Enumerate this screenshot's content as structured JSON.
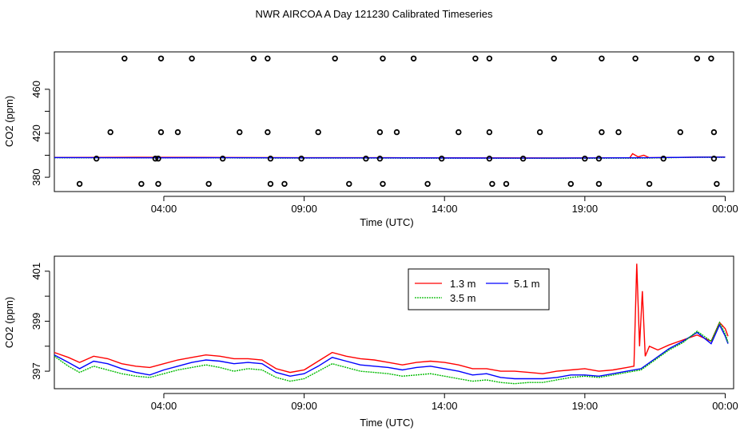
{
  "figure": {
    "title": "NWR AIRCOA A  Day 121230  Calibrated Timeseries"
  },
  "colors": {
    "s1": "#ff0000",
    "s2": "#00bb00",
    "s3": "#0000ff",
    "frame": "#000000"
  },
  "chart_data": [
    {
      "type": "scatter",
      "xlabel": "Time (UTC)",
      "ylabel": "CO2 (ppm)",
      "x_ticks": [
        "04:00",
        "09:00",
        "14:00",
        "19:00",
        "00:00"
      ],
      "x_tick_hours": [
        4,
        9,
        14,
        19,
        24
      ],
      "y_ticks": [
        "380",
        "420",
        "460"
      ],
      "y_tick_values": [
        380,
        420,
        460
      ],
      "xlim": [
        0.1,
        24.3
      ],
      "ylim": [
        367,
        494
      ],
      "grid": false,
      "markers": [
        [
          1.0,
          374
        ],
        [
          1.6,
          397
        ],
        [
          2.1,
          421
        ],
        [
          2.6,
          488
        ],
        [
          3.2,
          374
        ],
        [
          3.7,
          397
        ],
        [
          3.8,
          374
        ],
        [
          3.8,
          397
        ],
        [
          3.9,
          421
        ],
        [
          3.9,
          488
        ],
        [
          4.5,
          421
        ],
        [
          5.0,
          488
        ],
        [
          5.6,
          374
        ],
        [
          6.1,
          397
        ],
        [
          6.7,
          421
        ],
        [
          7.2,
          488
        ],
        [
          7.7,
          488
        ],
        [
          7.7,
          421
        ],
        [
          7.8,
          397
        ],
        [
          7.8,
          374
        ],
        [
          8.3,
          374
        ],
        [
          8.9,
          397
        ],
        [
          9.5,
          421
        ],
        [
          10.1,
          488
        ],
        [
          10.6,
          374
        ],
        [
          11.2,
          397
        ],
        [
          11.7,
          421
        ],
        [
          11.7,
          397
        ],
        [
          11.8,
          488
        ],
        [
          11.8,
          374
        ],
        [
          12.3,
          421
        ],
        [
          12.9,
          488
        ],
        [
          13.4,
          374
        ],
        [
          13.9,
          397
        ],
        [
          14.5,
          421
        ],
        [
          15.1,
          488
        ],
        [
          15.6,
          488
        ],
        [
          15.6,
          421
        ],
        [
          15.6,
          397
        ],
        [
          15.7,
          374
        ],
        [
          16.2,
          374
        ],
        [
          16.8,
          397
        ],
        [
          17.4,
          421
        ],
        [
          17.9,
          488
        ],
        [
          18.5,
          374
        ],
        [
          19.0,
          397
        ],
        [
          19.5,
          397
        ],
        [
          19.5,
          374
        ],
        [
          19.6,
          421
        ],
        [
          19.6,
          488
        ],
        [
          20.2,
          421
        ],
        [
          20.8,
          488
        ],
        [
          21.3,
          374
        ],
        [
          21.8,
          397
        ],
        [
          22.4,
          421
        ],
        [
          23.0,
          488
        ],
        [
          23.5,
          488
        ],
        [
          23.6,
          421
        ],
        [
          23.6,
          397
        ],
        [
          23.7,
          374
        ]
      ],
      "series": [
        {
          "key": "s1",
          "points": [
            [
              0.1,
              398.0
            ],
            [
              3.0,
              398.1
            ],
            [
              6.0,
              398.0
            ],
            [
              9.0,
              397.8
            ],
            [
              12.0,
              397.8
            ],
            [
              15.0,
              397.6
            ],
            [
              18.0,
              397.5
            ],
            [
              20.6,
              397.6
            ],
            [
              20.7,
              401.5
            ],
            [
              20.9,
              398.5
            ],
            [
              21.1,
              400.0
            ],
            [
              21.3,
              397.8
            ],
            [
              23.0,
              398.3
            ],
            [
              24.0,
              398.4
            ]
          ]
        },
        {
          "key": "s2",
          "points": [
            [
              0.1,
              397.8
            ],
            [
              3.0,
              397.6
            ],
            [
              6.0,
              397.6
            ],
            [
              9.0,
              397.4
            ],
            [
              12.0,
              397.4
            ],
            [
              15.0,
              397.3
            ],
            [
              18.0,
              397.2
            ],
            [
              21.0,
              397.4
            ],
            [
              23.0,
              398.2
            ],
            [
              24.0,
              398.2
            ]
          ]
        },
        {
          "key": "s3",
          "points": [
            [
              0.1,
              397.9
            ],
            [
              3.0,
              397.7
            ],
            [
              6.0,
              397.8
            ],
            [
              9.0,
              397.6
            ],
            [
              12.0,
              397.6
            ],
            [
              15.0,
              397.5
            ],
            [
              18.0,
              397.4
            ],
            [
              21.0,
              397.7
            ],
            [
              23.0,
              398.3
            ],
            [
              24.0,
              398.3
            ]
          ]
        }
      ]
    },
    {
      "type": "line",
      "xlabel": "Time (UTC)",
      "ylabel": "CO2 (ppm)",
      "x_ticks": [
        "04:00",
        "09:00",
        "14:00",
        "19:00",
        "00:00"
      ],
      "x_tick_hours": [
        4,
        9,
        14,
        19,
        24
      ],
      "y_ticks": [
        "397",
        "399",
        "401"
      ],
      "y_tick_values": [
        397,
        399,
        401
      ],
      "xlim": [
        0.1,
        24.3
      ],
      "ylim": [
        396.3,
        401.6
      ],
      "grid": false,
      "legend": {
        "position": "top-center",
        "entries": [
          {
            "key": "s1",
            "label": "1.3 m"
          },
          {
            "key": "s3",
            "label": "5.1 m"
          },
          {
            "key": "s2",
            "label": "3.5 m"
          }
        ]
      },
      "series": [
        {
          "key": "s1",
          "points": [
            [
              0.1,
              397.75
            ],
            [
              0.6,
              397.55
            ],
            [
              1.0,
              397.35
            ],
            [
              1.5,
              397.6
            ],
            [
              2.0,
              397.5
            ],
            [
              2.5,
              397.3
            ],
            [
              3.0,
              397.2
            ],
            [
              3.5,
              397.15
            ],
            [
              4.0,
              397.3
            ],
            [
              4.5,
              397.45
            ],
            [
              5.0,
              397.55
            ],
            [
              5.5,
              397.65
            ],
            [
              6.0,
              397.6
            ],
            [
              6.5,
              397.5
            ],
            [
              7.0,
              397.5
            ],
            [
              7.5,
              397.45
            ],
            [
              8.0,
              397.1
            ],
            [
              8.5,
              396.95
            ],
            [
              9.0,
              397.05
            ],
            [
              9.5,
              397.4
            ],
            [
              10.0,
              397.75
            ],
            [
              10.5,
              397.6
            ],
            [
              11.0,
              397.5
            ],
            [
              11.5,
              397.45
            ],
            [
              12.0,
              397.35
            ],
            [
              12.5,
              397.25
            ],
            [
              13.0,
              397.35
            ],
            [
              13.5,
              397.4
            ],
            [
              14.0,
              397.35
            ],
            [
              14.5,
              397.25
            ],
            [
              15.0,
              397.1
            ],
            [
              15.5,
              397.1
            ],
            [
              16.0,
              397.0
            ],
            [
              16.5,
              397.0
            ],
            [
              17.0,
              396.95
            ],
            [
              17.5,
              396.9
            ],
            [
              18.0,
              397.0
            ],
            [
              18.5,
              397.05
            ],
            [
              19.0,
              397.1
            ],
            [
              19.5,
              397.0
            ],
            [
              20.0,
              397.05
            ],
            [
              20.5,
              397.15
            ],
            [
              20.75,
              397.2
            ],
            [
              20.85,
              401.3
            ],
            [
              20.95,
              398.0
            ],
            [
              21.05,
              400.2
            ],
            [
              21.15,
              397.6
            ],
            [
              21.3,
              398.0
            ],
            [
              21.6,
              397.85
            ],
            [
              22.0,
              398.05
            ],
            [
              22.5,
              398.25
            ],
            [
              23.0,
              398.45
            ],
            [
              23.5,
              398.2
            ],
            [
              23.8,
              398.95
            ],
            [
              24.0,
              398.7
            ],
            [
              24.1,
              398.4
            ]
          ]
        },
        {
          "key": "s3",
          "points": [
            [
              0.1,
              397.65
            ],
            [
              0.6,
              397.35
            ],
            [
              1.0,
              397.1
            ],
            [
              1.5,
              397.4
            ],
            [
              2.0,
              397.3
            ],
            [
              2.5,
              397.1
            ],
            [
              3.0,
              396.95
            ],
            [
              3.5,
              396.85
            ],
            [
              4.0,
              397.05
            ],
            [
              4.5,
              397.2
            ],
            [
              5.0,
              397.35
            ],
            [
              5.5,
              397.45
            ],
            [
              6.0,
              397.4
            ],
            [
              6.5,
              397.3
            ],
            [
              7.0,
              397.35
            ],
            [
              7.5,
              397.3
            ],
            [
              8.0,
              396.95
            ],
            [
              8.5,
              396.8
            ],
            [
              9.0,
              396.9
            ],
            [
              9.5,
              397.2
            ],
            [
              10.0,
              397.55
            ],
            [
              10.5,
              397.4
            ],
            [
              11.0,
              397.25
            ],
            [
              11.5,
              397.2
            ],
            [
              12.0,
              397.15
            ],
            [
              12.5,
              397.05
            ],
            [
              13.0,
              397.15
            ],
            [
              13.5,
              397.2
            ],
            [
              14.0,
              397.1
            ],
            [
              14.5,
              397.0
            ],
            [
              15.0,
              396.85
            ],
            [
              15.5,
              396.9
            ],
            [
              16.0,
              396.75
            ],
            [
              16.5,
              396.7
            ],
            [
              17.0,
              396.7
            ],
            [
              17.5,
              396.7
            ],
            [
              18.0,
              396.75
            ],
            [
              18.5,
              396.85
            ],
            [
              19.0,
              396.85
            ],
            [
              19.5,
              396.8
            ],
            [
              20.0,
              396.9
            ],
            [
              20.5,
              397.0
            ],
            [
              21.0,
              397.1
            ],
            [
              21.5,
              397.5
            ],
            [
              22.0,
              397.9
            ],
            [
              22.5,
              398.2
            ],
            [
              23.0,
              398.55
            ],
            [
              23.5,
              398.1
            ],
            [
              23.8,
              398.85
            ],
            [
              24.0,
              398.4
            ],
            [
              24.1,
              398.1
            ]
          ]
        },
        {
          "key": "s2",
          "points": [
            [
              0.1,
              397.6
            ],
            [
              0.6,
              397.2
            ],
            [
              1.0,
              396.95
            ],
            [
              1.5,
              397.2
            ],
            [
              2.0,
              397.05
            ],
            [
              2.5,
              396.9
            ],
            [
              3.0,
              396.8
            ],
            [
              3.5,
              396.75
            ],
            [
              4.0,
              396.9
            ],
            [
              4.5,
              397.05
            ],
            [
              5.0,
              397.15
            ],
            [
              5.5,
              397.25
            ],
            [
              6.0,
              397.15
            ],
            [
              6.5,
              397.0
            ],
            [
              7.0,
              397.1
            ],
            [
              7.5,
              397.05
            ],
            [
              8.0,
              396.75
            ],
            [
              8.5,
              396.6
            ],
            [
              9.0,
              396.7
            ],
            [
              9.5,
              397.0
            ],
            [
              10.0,
              397.3
            ],
            [
              10.5,
              397.15
            ],
            [
              11.0,
              397.0
            ],
            [
              11.5,
              396.95
            ],
            [
              12.0,
              396.9
            ],
            [
              12.5,
              396.8
            ],
            [
              13.0,
              396.85
            ],
            [
              13.5,
              396.9
            ],
            [
              14.0,
              396.8
            ],
            [
              14.5,
              396.7
            ],
            [
              15.0,
              396.6
            ],
            [
              15.5,
              396.65
            ],
            [
              16.0,
              396.55
            ],
            [
              16.5,
              396.5
            ],
            [
              17.0,
              396.55
            ],
            [
              17.5,
              396.55
            ],
            [
              18.0,
              396.65
            ],
            [
              18.5,
              396.75
            ],
            [
              19.0,
              396.8
            ],
            [
              19.5,
              396.75
            ],
            [
              20.0,
              396.85
            ],
            [
              20.5,
              396.95
            ],
            [
              21.0,
              397.05
            ],
            [
              21.5,
              397.45
            ],
            [
              22.0,
              397.85
            ],
            [
              22.5,
              398.15
            ],
            [
              23.0,
              398.6
            ],
            [
              23.5,
              398.2
            ],
            [
              23.8,
              398.95
            ],
            [
              24.0,
              398.5
            ],
            [
              24.1,
              398.15
            ]
          ]
        }
      ]
    }
  ]
}
